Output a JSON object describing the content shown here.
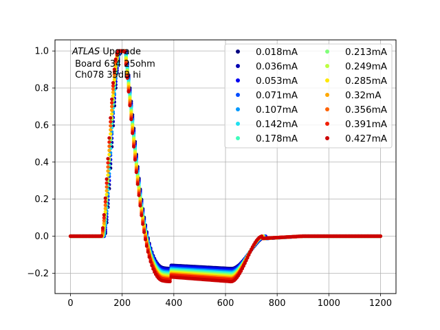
{
  "chart_data": {
    "type": "scatter",
    "title": "",
    "xlabel": "",
    "ylabel": "",
    "xlim": [
      -60,
      1260
    ],
    "ylim": [
      -0.31,
      1.06
    ],
    "xticks": [
      0,
      200,
      400,
      600,
      800,
      1000,
      1200
    ],
    "yticks": [
      -0.2,
      0.0,
      0.2,
      0.4,
      0.6,
      0.8,
      1.0
    ],
    "xtick_labels": [
      "0",
      "200",
      "400",
      "600",
      "800",
      "1000",
      "1200"
    ],
    "ytick_labels": [
      "−0.2",
      "0.0",
      "0.2",
      "0.4",
      "0.6",
      "0.8",
      "1.0"
    ],
    "grid": true,
    "legend_position": "upper-right",
    "legend_columns": 2,
    "annotation": {
      "italic_part": "ATLAS",
      "line1_rest": " Upgrade",
      "line2": " Board 634 25ohm",
      "line3": " Ch078 35dB hi"
    },
    "x_start": 0,
    "x_end": 1200,
    "x_step": 5,
    "series": [
      {
        "name": "0.018mA",
        "color": "#00007f",
        "rise_start": 132,
        "peak_x": 196,
        "undershoot": -0.175,
        "recover_x": 700
      },
      {
        "name": "0.036mA",
        "color": "#0000b2",
        "rise_start": 131,
        "peak_x": 195,
        "undershoot": -0.178,
        "recover_x": 698
      },
      {
        "name": "0.053mA",
        "color": "#0000f1",
        "rise_start": 130,
        "peak_x": 194,
        "undershoot": -0.182,
        "recover_x": 696
      },
      {
        "name": "0.071mA",
        "color": "#004cff",
        "rise_start": 129,
        "peak_x": 193,
        "undershoot": -0.19,
        "recover_x": 694
      },
      {
        "name": "0.107mA",
        "color": "#0098ff",
        "rise_start": 128,
        "peak_x": 193,
        "undershoot": -0.195,
        "recover_x": 692
      },
      {
        "name": "0.142mA",
        "color": "#1fe0f0",
        "rise_start": 127,
        "peak_x": 192,
        "undershoot": -0.2,
        "recover_x": 690
      },
      {
        "name": "0.178mA",
        "color": "#3ffdbc",
        "rise_start": 126,
        "peak_x": 191,
        "undershoot": -0.205,
        "recover_x": 689
      },
      {
        "name": "0.213mA",
        "color": "#80ff7a",
        "rise_start": 125,
        "peak_x": 190,
        "undershoot": -0.21,
        "recover_x": 688
      },
      {
        "name": "0.249mA",
        "color": "#bcff3f",
        "rise_start": 124,
        "peak_x": 190,
        "undershoot": -0.215,
        "recover_x": 687
      },
      {
        "name": "0.285mA",
        "color": "#ffe800",
        "rise_start": 123,
        "peak_x": 189,
        "undershoot": -0.22,
        "recover_x": 686
      },
      {
        "name": "0.32mA",
        "color": "#ffa800",
        "rise_start": 122,
        "peak_x": 188,
        "undershoot": -0.225,
        "recover_x": 685
      },
      {
        "name": "0.356mA",
        "color": "#ff6200",
        "rise_start": 121,
        "peak_x": 187,
        "undershoot": -0.23,
        "recover_x": 684
      },
      {
        "name": "0.391mA",
        "color": "#f11d00",
        "rise_start": 120,
        "peak_x": 186,
        "undershoot": -0.235,
        "recover_x": 683
      },
      {
        "name": "0.427mA",
        "color": "#cc0000",
        "rise_start": 119,
        "peak_x": 185,
        "undershoot": -0.245,
        "recover_x": 682
      }
    ]
  }
}
